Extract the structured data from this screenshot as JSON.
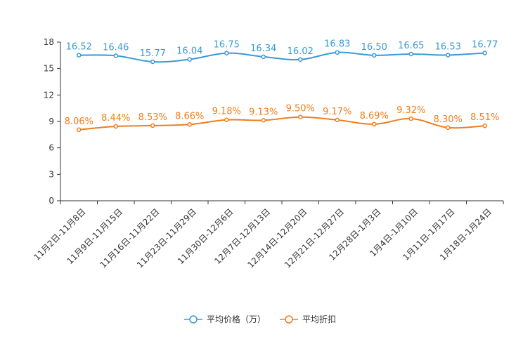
{
  "chart_data": {
    "type": "line",
    "title": "",
    "xlabel": "",
    "ylabel": "",
    "ylim": [
      0,
      18
    ],
    "yticks": [
      0,
      3,
      6,
      9,
      12,
      15,
      18
    ],
    "grid": false,
    "legend_position": "bottom-center",
    "categories": [
      "11月2日-11月8日",
      "11月9日-11月15日",
      "11月16日-11月22日",
      "11月23日-11月29日",
      "11月30日-12月6日",
      "12月7日-12月13日",
      "12月14日-12月20日",
      "12月21日-12月27日",
      "12月28日-1月3日",
      "1月4日-1月10日",
      "1月11日-1月17日",
      "1月18日-1月24日"
    ],
    "series": [
      {
        "name": "平均价格（万）",
        "color": "#3a9ad4",
        "values": [
          16.52,
          16.46,
          15.77,
          16.04,
          16.75,
          16.34,
          16.02,
          16.83,
          16.5,
          16.65,
          16.53,
          16.77
        ],
        "labels": [
          "16.52",
          "16.46",
          "15.77",
          "16.04",
          "16.75",
          "16.34",
          "16.02",
          "16.83",
          "16.50",
          "16.65",
          "16.53",
          "16.77"
        ]
      },
      {
        "name": "平均折扣",
        "color": "#f07d1a",
        "values": [
          8.06,
          8.44,
          8.53,
          8.66,
          9.18,
          9.13,
          9.5,
          9.17,
          8.69,
          9.32,
          8.3,
          8.51
        ],
        "labels": [
          "8.06%",
          "8.44%",
          "8.53%",
          "8.66%",
          "9.18%",
          "9.13%",
          "9.50%",
          "9.17%",
          "8.69%",
          "9.32%",
          "8.30%",
          "8.51%"
        ]
      }
    ]
  }
}
